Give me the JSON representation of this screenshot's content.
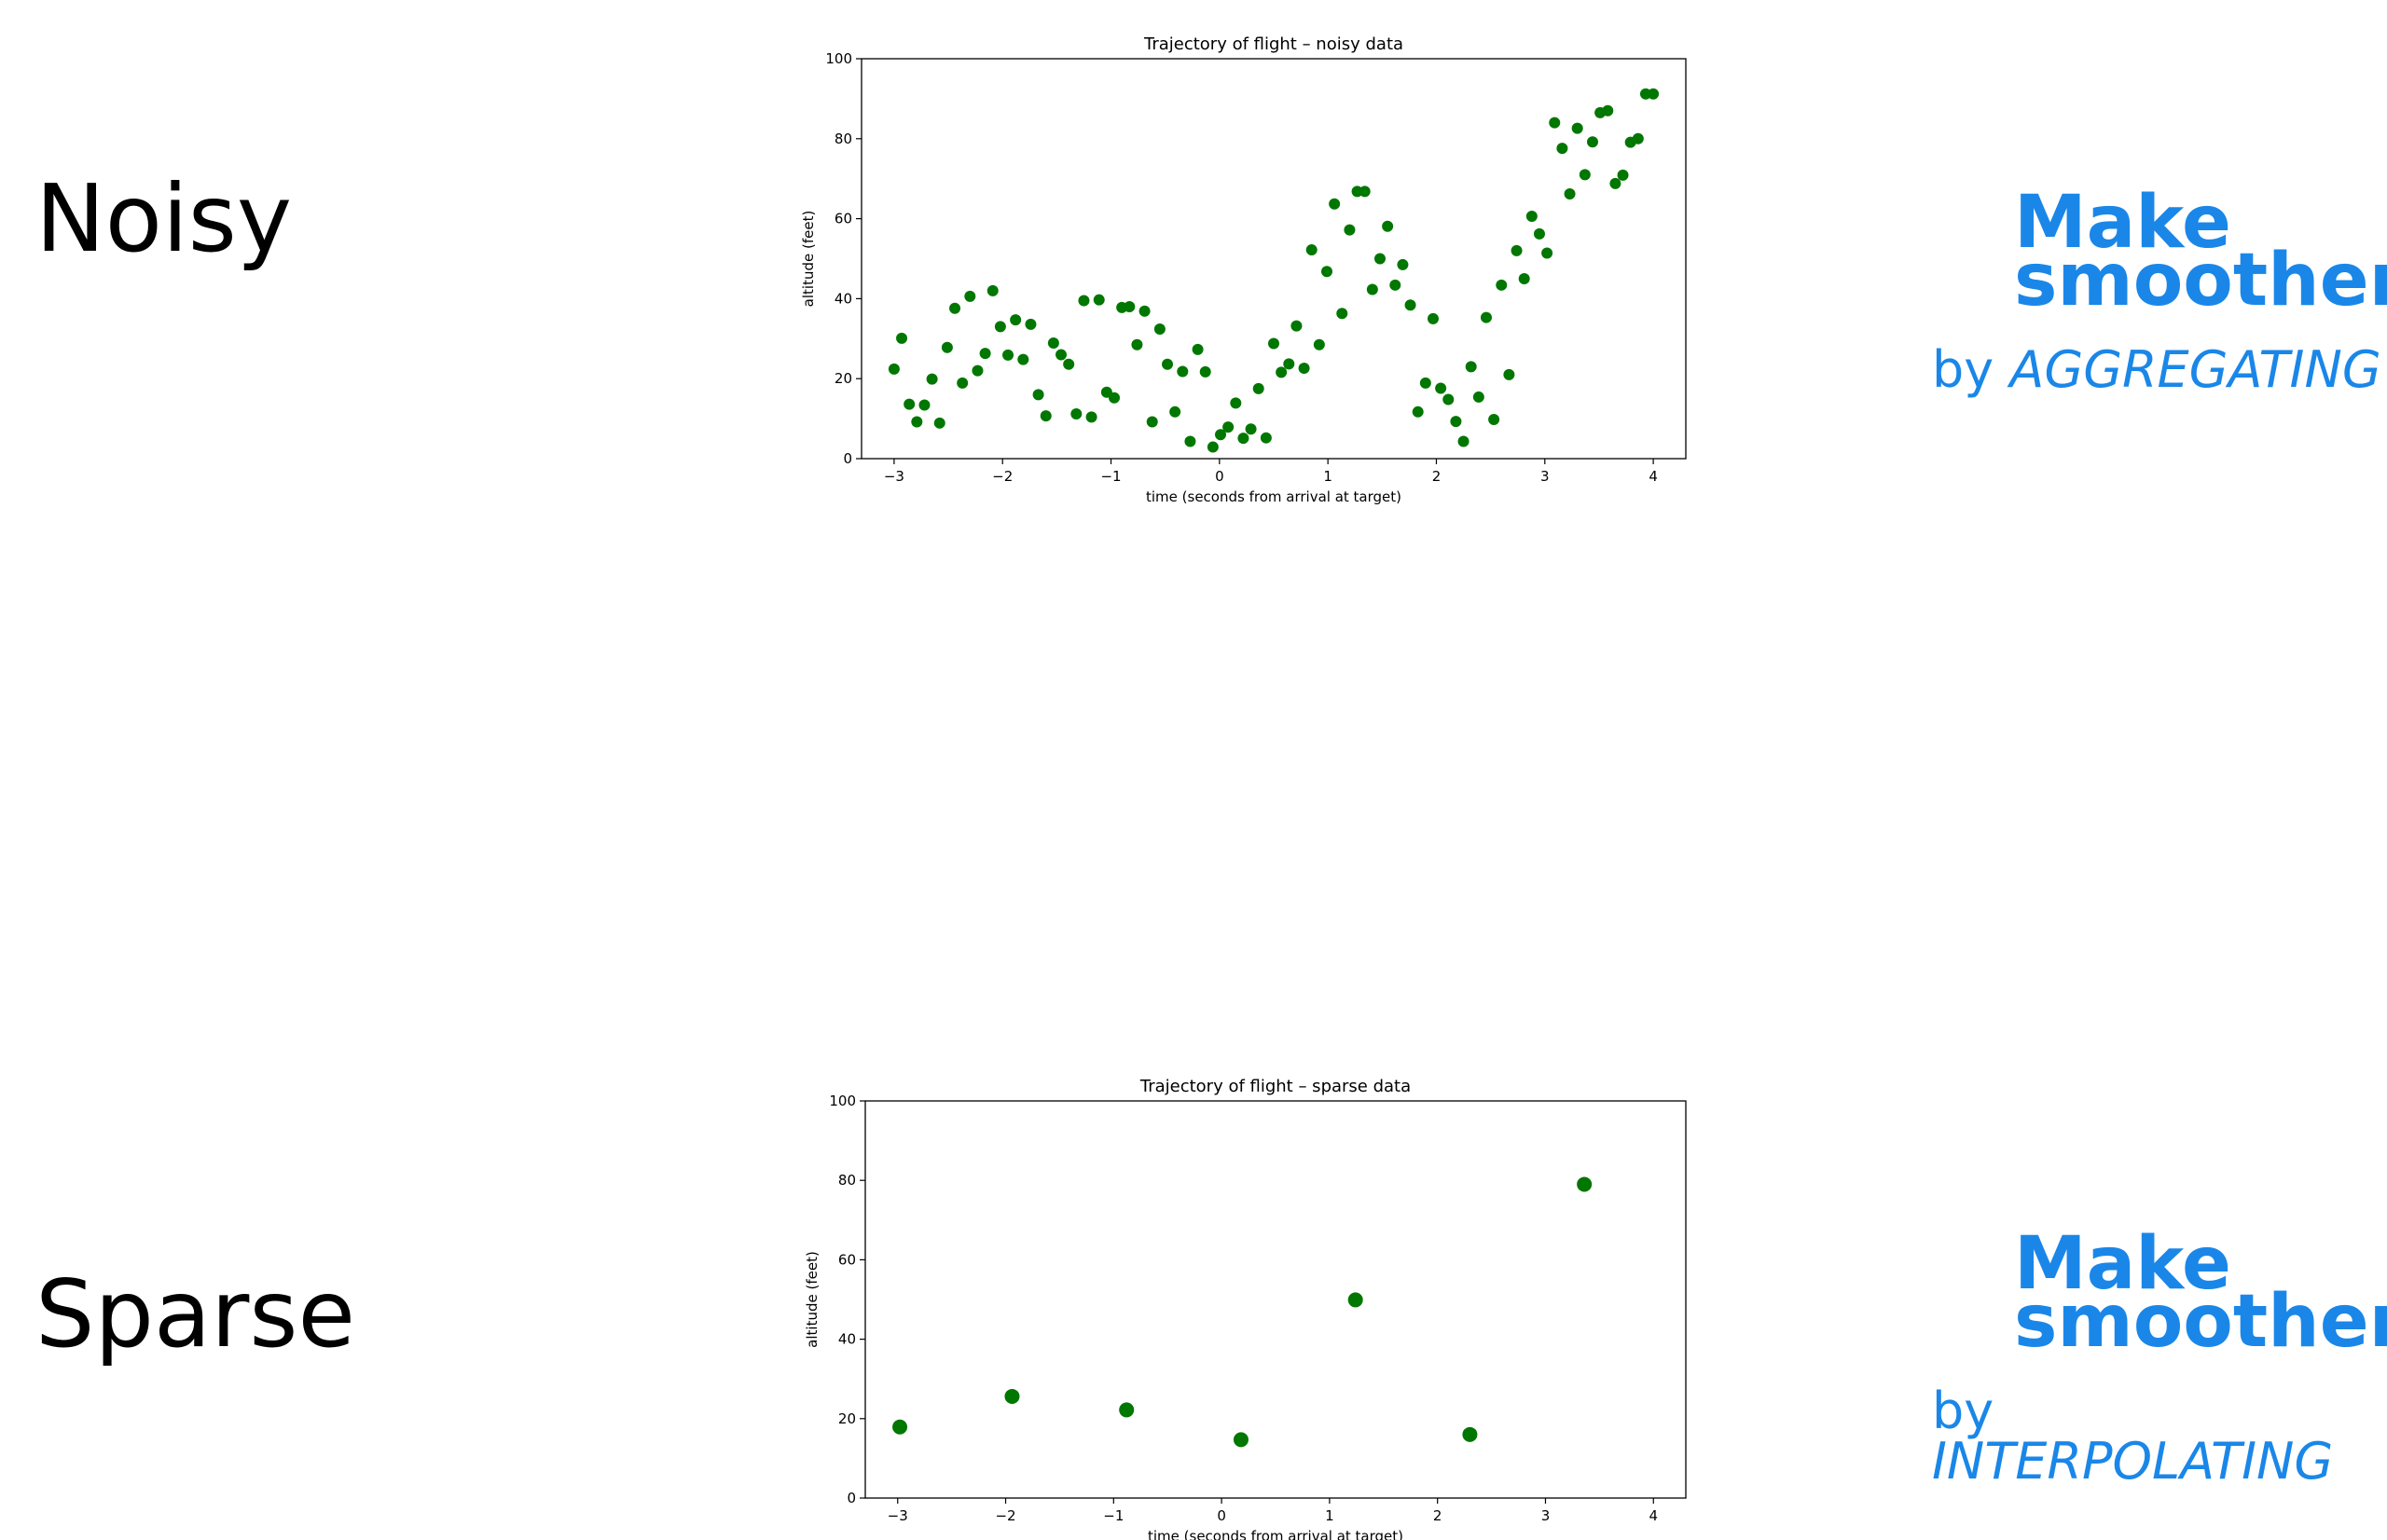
{
  "labels": {
    "noisy": "Noisy",
    "sparse": "Sparse"
  },
  "smoothing": {
    "top": {
      "line1": "Make",
      "line2": "smoother",
      "by": "by",
      "method": "AGGREGATING"
    },
    "bottom": {
      "line1": "Make",
      "line2": "smoother",
      "by": "by",
      "method": "INTERPOLATING"
    },
    "color": "#1a87e8"
  },
  "chart_data": [
    {
      "type": "scatter",
      "title": "Trajectory of flight  –  noisy data",
      "xlabel": "time (seconds from arrival at target)",
      "ylabel": "altitude (feet)",
      "xlim": [
        -3.3,
        4.3
      ],
      "ylim": [
        0,
        100
      ],
      "xticks": [
        -3,
        -2,
        -1,
        0,
        1,
        2,
        3,
        4
      ],
      "xtick_labels": [
        "−3",
        "−2",
        "−1",
        "0",
        "1",
        "2",
        "3",
        "4"
      ],
      "yticks": [
        0,
        20,
        40,
        60,
        80,
        100
      ],
      "ytick_labels": [
        "0",
        "20",
        "40",
        "60",
        "80",
        "100"
      ],
      "grid": false,
      "marker_color": "#007700",
      "series": [
        {
          "x": [
            -3.0,
            -2.93,
            -2.86,
            -2.79,
            -2.72,
            -2.65,
            -2.58,
            -2.51,
            -2.44,
            -2.37,
            -2.3,
            -2.23,
            -2.16,
            -2.09,
            -2.02,
            -1.95,
            -1.88,
            -1.81,
            -1.74,
            -1.67,
            -1.6,
            -1.53,
            -1.46,
            -1.39,
            -1.32,
            -1.25,
            -1.18,
            -1.11,
            -1.04,
            -0.97,
            -0.9,
            -0.83,
            -0.76,
            -0.69,
            -0.62,
            -0.55,
            -0.48,
            -0.41,
            -0.34,
            -0.27,
            -0.2,
            -0.13,
            -0.06,
            0.01,
            0.08,
            0.15,
            0.22,
            0.29,
            0.36,
            0.43,
            0.5,
            0.57,
            0.64,
            0.71,
            0.78,
            0.85,
            0.92,
            0.99,
            1.06,
            1.13,
            1.2,
            1.27,
            1.34,
            1.41,
            1.48,
            1.55,
            1.62,
            1.69,
            1.76,
            1.83,
            1.9,
            1.97,
            2.04,
            2.11,
            2.18,
            2.25,
            2.32,
            2.39,
            2.46,
            2.53,
            2.6,
            2.67,
            2.74,
            2.81,
            2.88,
            2.95,
            3.02,
            3.09,
            3.16,
            3.23,
            3.3,
            3.37,
            3.44,
            3.51,
            3.58,
            3.65,
            3.72,
            3.79,
            3.86,
            3.93,
            4.0
          ],
          "y": [
            22.4,
            30.1,
            13.6,
            9.2,
            13.4,
            19.9,
            8.9,
            27.8,
            37.6,
            18.9,
            40.6,
            22.0,
            26.3,
            42.0,
            33.0,
            25.9,
            34.7,
            24.8,
            33.6,
            16.0,
            10.7,
            28.9,
            26.0,
            23.6,
            11.2,
            39.5,
            10.4,
            39.7,
            16.6,
            15.2,
            37.8,
            38.0,
            28.5,
            36.9,
            9.2,
            32.4,
            23.6,
            11.7,
            21.8,
            4.3,
            27.3,
            21.7,
            2.9,
            6.0,
            7.9,
            13.9,
            5.1,
            7.4,
            17.5,
            5.2,
            28.8,
            21.6,
            23.7,
            33.2,
            22.6,
            52.2,
            28.5,
            46.8,
            63.7,
            36.3,
            57.2,
            66.8,
            66.8,
            42.3,
            50.0,
            58.1,
            43.4,
            48.5,
            38.4,
            11.7,
            18.9,
            35.0,
            17.6,
            14.8,
            9.3,
            4.3,
            23.0,
            15.4,
            35.3,
            9.8,
            43.4,
            21.0,
            52.0,
            45.0,
            60.6,
            56.2,
            51.4,
            84.0,
            77.6,
            66.2,
            82.6,
            71.0,
            79.2,
            86.5,
            87.0,
            68.8,
            70.9,
            79.1,
            80.0,
            91.2,
            91.2
          ]
        }
      ]
    },
    {
      "type": "scatter",
      "title": "Trajectory of flight  –  sparse data",
      "xlabel": "time (seconds from arrival at target)",
      "ylabel": "altitude (feet)",
      "xlim": [
        -3.3,
        4.3
      ],
      "ylim": [
        0,
        100
      ],
      "xticks": [
        -3,
        -2,
        -1,
        0,
        1,
        2,
        3,
        4
      ],
      "xtick_labels": [
        "−3",
        "−2",
        "−1",
        "0",
        "1",
        "2",
        "3",
        "4"
      ],
      "yticks": [
        0,
        20,
        40,
        60,
        80,
        100
      ],
      "ytick_labels": [
        "0",
        "20",
        "40",
        "60",
        "80",
        "100"
      ],
      "grid": false,
      "marker_color": "#007700",
      "series": [
        {
          "x": [
            -2.98,
            -1.94,
            -0.88,
            0.18,
            1.24,
            2.3,
            3.36
          ],
          "y": [
            17.9,
            25.6,
            22.2,
            14.7,
            49.9,
            16.0,
            79.0
          ]
        }
      ]
    }
  ]
}
